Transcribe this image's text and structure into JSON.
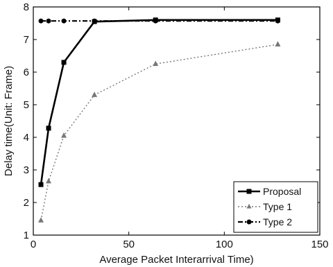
{
  "chart_data": {
    "type": "line",
    "title": "",
    "xlabel": "Average Packet Interarrival Time)",
    "ylabel": "Delay time(Unit: Frame)",
    "xlim": [
      0,
      150
    ],
    "ylim": [
      1,
      8
    ],
    "xticks": [
      0,
      50,
      100,
      150
    ],
    "yticks": [
      1,
      2,
      3,
      4,
      5,
      6,
      7,
      8
    ],
    "grid": false,
    "legend_position": "bottom-right",
    "series": [
      {
        "name": "Proposal",
        "style": "solid",
        "marker": "square",
        "color": "#000000",
        "x": [
          4,
          8,
          16,
          32,
          64,
          128
        ],
        "y": [
          2.55,
          4.28,
          6.3,
          7.55,
          7.6,
          7.6
        ]
      },
      {
        "name": "Type 1",
        "style": "dotted",
        "marker": "triangle",
        "color": "#777777",
        "x": [
          4,
          8,
          16,
          32,
          64,
          128
        ],
        "y": [
          1.45,
          2.65,
          4.05,
          5.3,
          6.25,
          6.85
        ]
      },
      {
        "name": "Type 2",
        "style": "dashdot",
        "marker": "circle",
        "color": "#000000",
        "x": [
          4,
          8,
          16,
          32,
          64,
          128
        ],
        "y": [
          7.57,
          7.57,
          7.57,
          7.57,
          7.57,
          7.57
        ]
      }
    ]
  }
}
